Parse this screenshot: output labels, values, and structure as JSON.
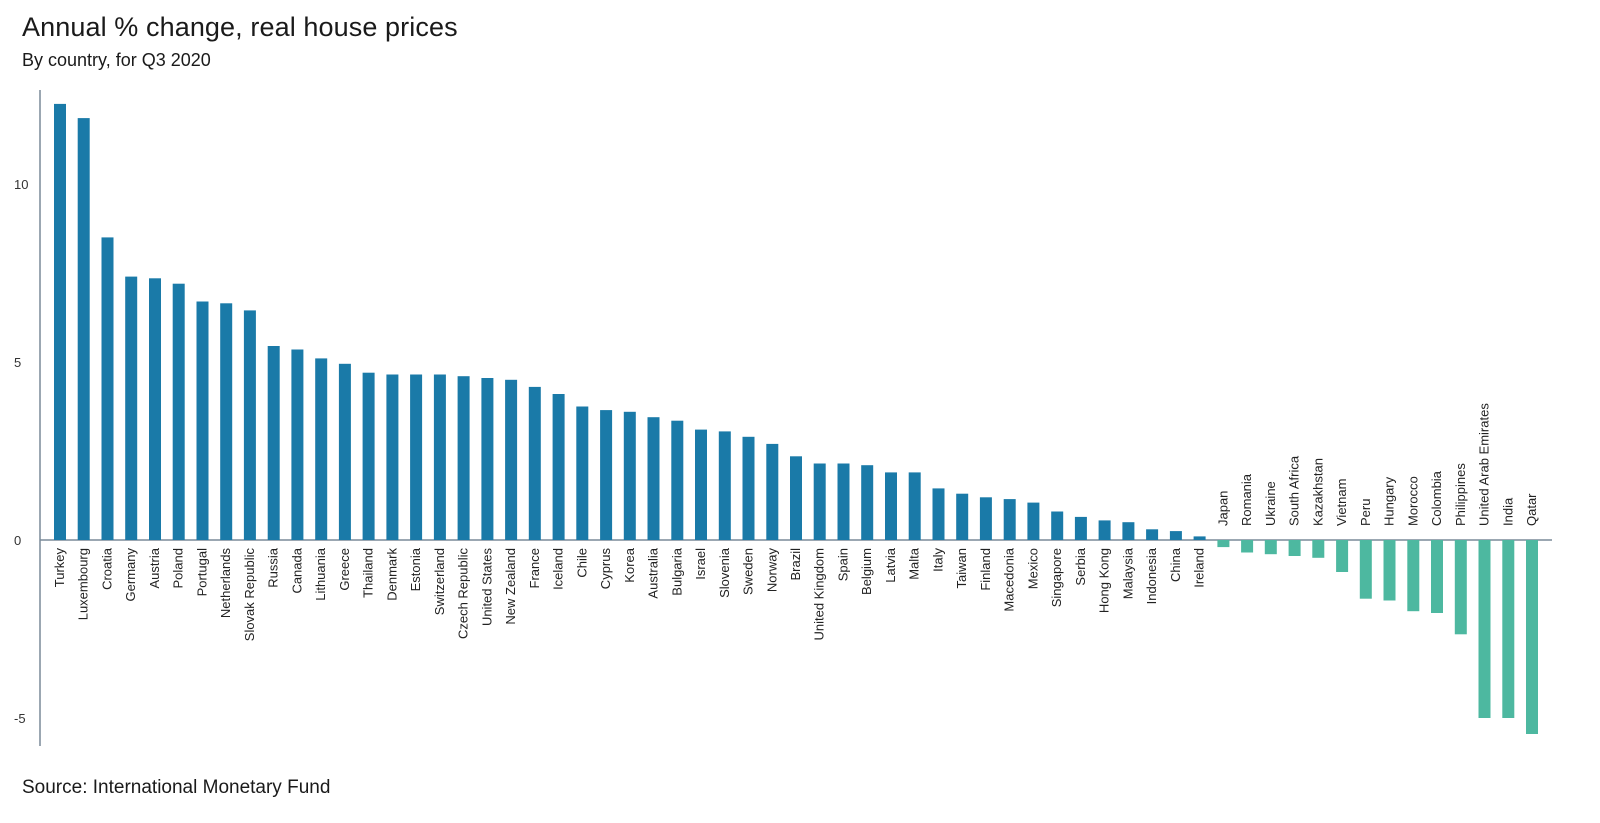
{
  "title": "Annual % change, real house prices",
  "subtitle": "By country, for Q3 2020",
  "source": "Source: International Monetary Fund",
  "colors": {
    "positive": "#1a7aa8",
    "negative": "#4db8a0",
    "axis": "#7a8a99"
  },
  "chart_data": {
    "type": "bar",
    "title": "Annual % change, real house prices",
    "subtitle": "By country, for Q3 2020",
    "xlabel": "",
    "ylabel": "",
    "ylim": [
      -5.8,
      12.8
    ],
    "yticks": [
      10,
      5,
      0,
      -5
    ],
    "grid": false,
    "categories": [
      "Turkey",
      "Luxembourg",
      "Croatia",
      "Germany",
      "Austria",
      "Poland",
      "Portugal",
      "Netherlands",
      "Slovak Republic",
      "Russia",
      "Canada",
      "Lithuania",
      "Greece",
      "Thailand",
      "Denmark",
      "Estonia",
      "Switzerland",
      "Czech Republic",
      "United States",
      "New Zealand",
      "France",
      "Iceland",
      "Chile",
      "Cyprus",
      "Korea",
      "Australia",
      "Bulgaria",
      "Israel",
      "Slovenia",
      "Sweden",
      "Norway",
      "Brazil",
      "United Kingdom",
      "Spain",
      "Belgium",
      "Latvia",
      "Malta",
      "Italy",
      "Taiwan",
      "Finland",
      "Macedonia",
      "Mexico",
      "Singapore",
      "Serbia",
      "Hong Kong",
      "Malaysia",
      "Indonesia",
      "China",
      "Ireland",
      "Japan",
      "Romania",
      "Ukraine",
      "South Africa",
      "Kazakhstan",
      "Vietnam",
      "Peru",
      "Hungary",
      "Morocco",
      "Colombia",
      "Philippines",
      "United Arab Emirates",
      "India",
      "Qatar"
    ],
    "values": [
      12.25,
      11.85,
      8.5,
      7.4,
      7.35,
      7.2,
      6.7,
      6.65,
      6.45,
      5.45,
      5.35,
      5.1,
      4.95,
      4.7,
      4.65,
      4.65,
      4.65,
      4.6,
      4.55,
      4.5,
      4.3,
      4.1,
      3.75,
      3.65,
      3.6,
      3.45,
      3.35,
      3.1,
      3.05,
      2.9,
      2.7,
      2.35,
      2.15,
      2.15,
      2.1,
      1.9,
      1.9,
      1.45,
      1.3,
      1.2,
      1.15,
      1.05,
      0.8,
      0.65,
      0.55,
      0.5,
      0.3,
      0.25,
      0.1,
      -0.2,
      -0.35,
      -0.4,
      -0.45,
      -0.5,
      -0.9,
      -1.65,
      -1.7,
      -2.0,
      -2.05,
      -2.65,
      -5.0,
      -5.0,
      -5.45
    ]
  }
}
